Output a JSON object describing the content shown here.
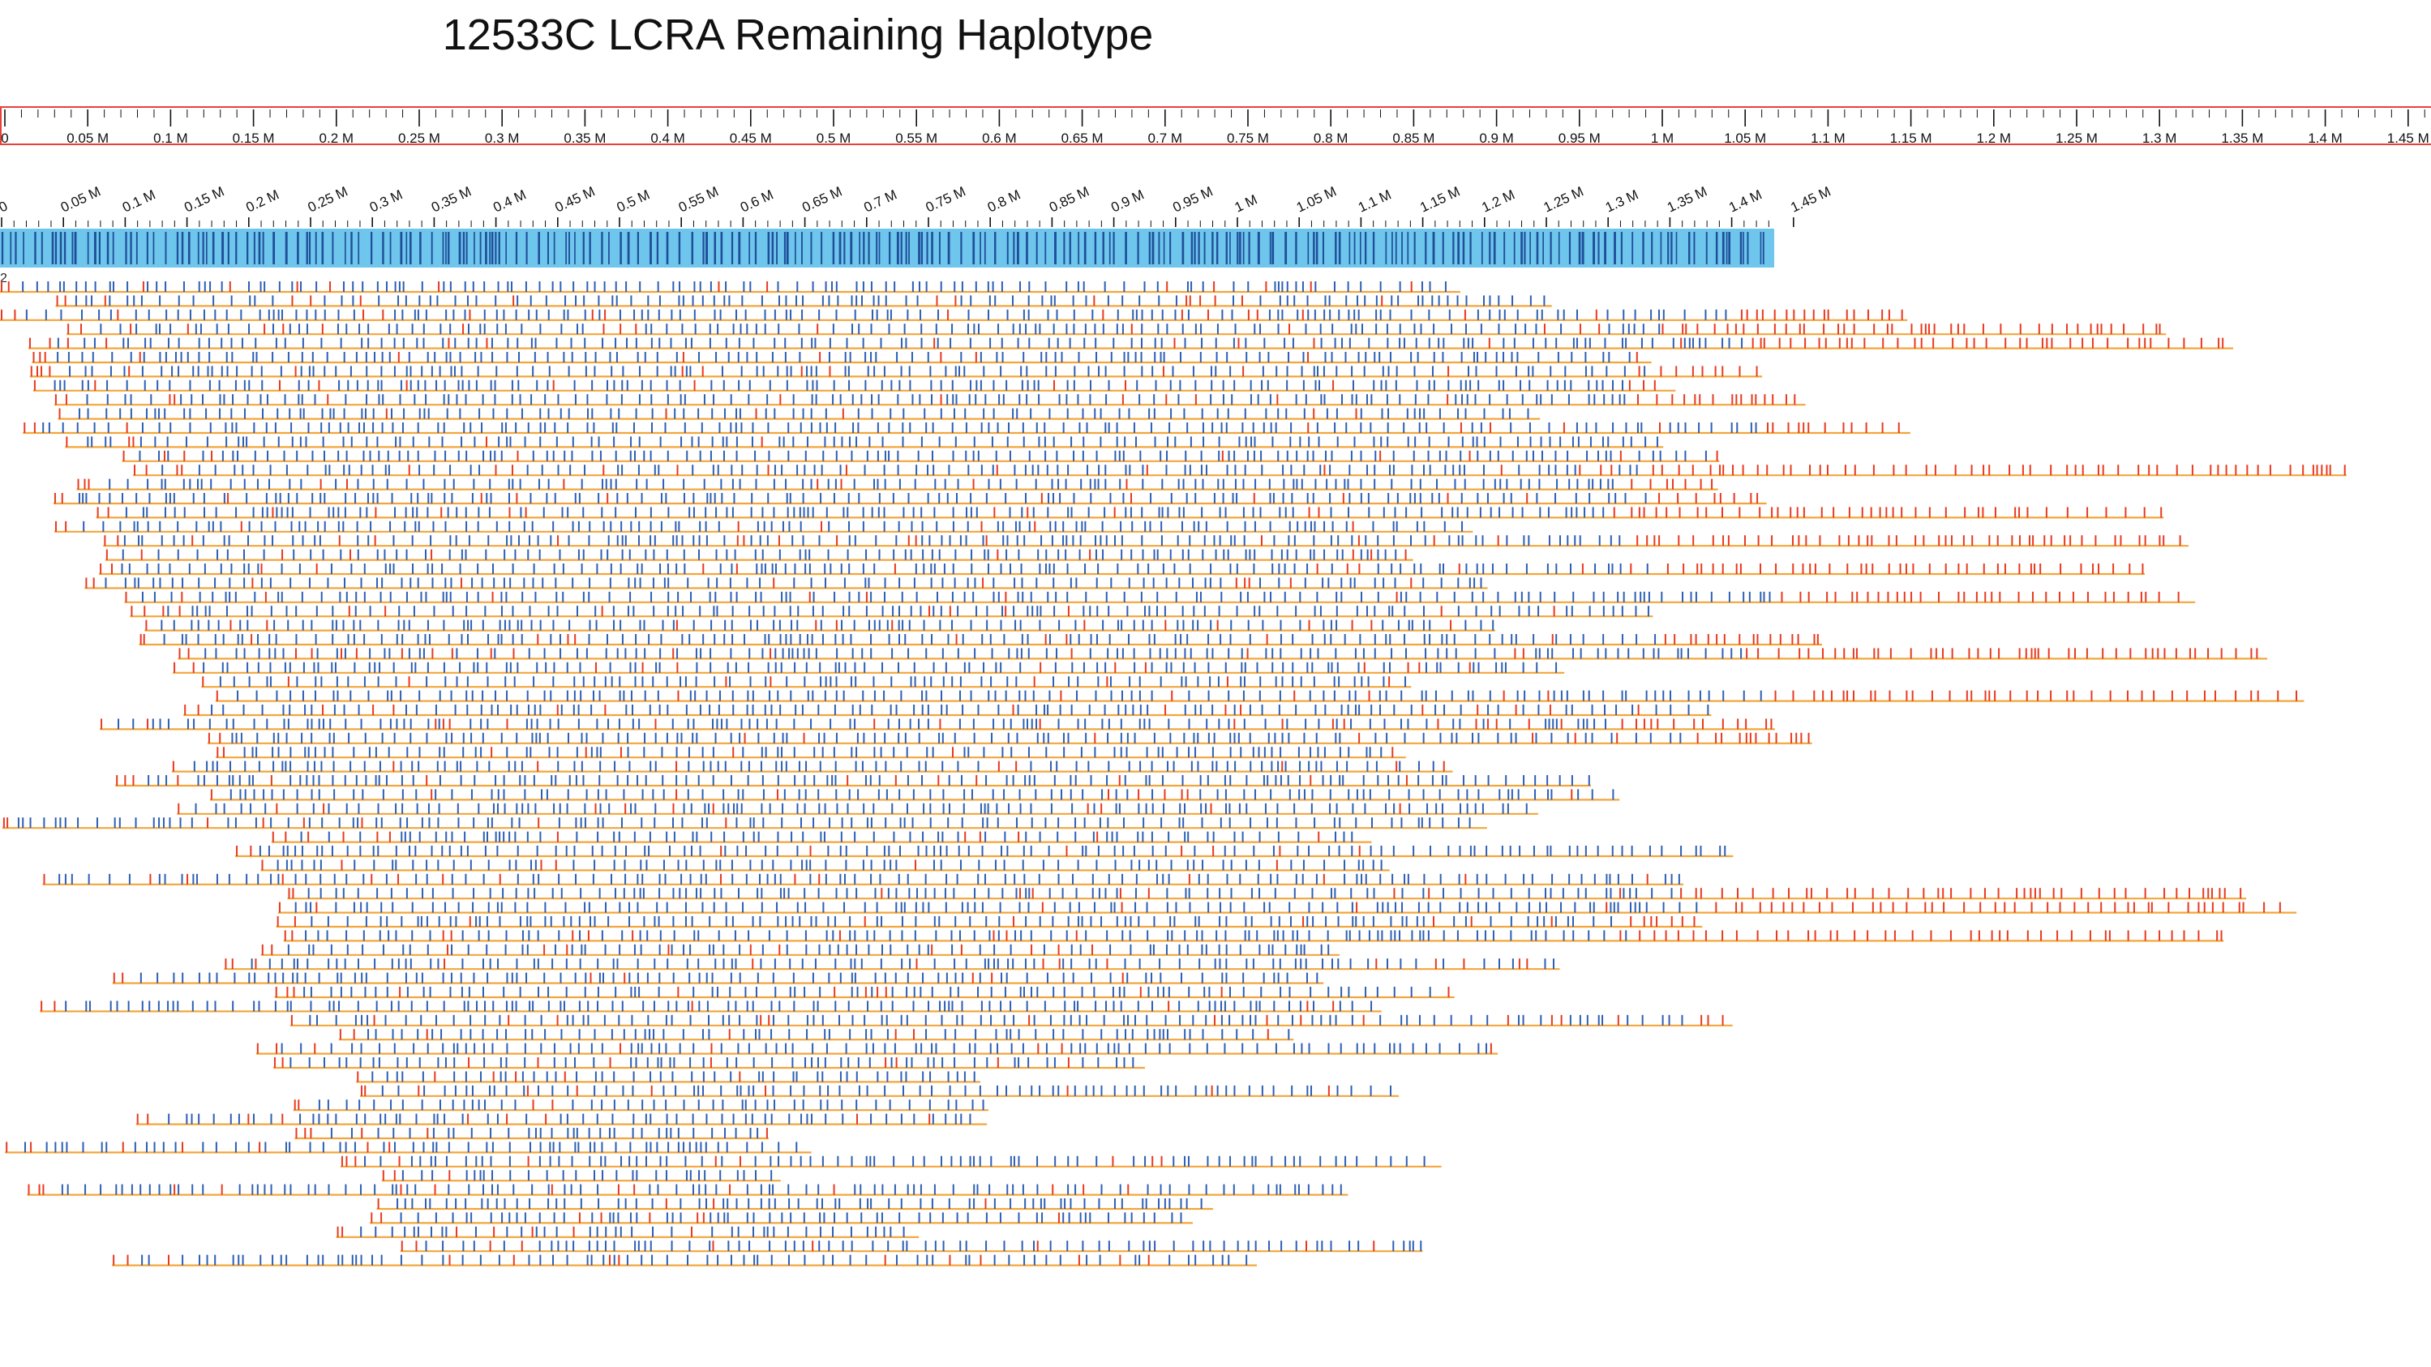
{
  "title": "12533C LCRA Remaining Haplotype",
  "reference_ruler": {
    "tick_labels": [
      "0",
      "0.05 M",
      "0.1 M",
      "0.15 M",
      "0.2 M",
      "0.25 M",
      "0.3 M",
      "0.35 M",
      "0.4 M",
      "0.45 M",
      "0.5 M",
      "0.55 M",
      "0.6 M",
      "0.65 M",
      "0.7 M",
      "0.75 M",
      "0.8 M",
      "0.85 M",
      "0.9 M",
      "0.95 M",
      "1 M",
      "1.05 M",
      "1.1 M",
      "1.15 M",
      "1.2 M",
      "1.25 M",
      "1.3 M",
      "1.35 M",
      "1.4 M",
      "1.45 M"
    ],
    "border_color": "#e8403a"
  },
  "contig_ruler": {
    "tick_labels": [
      "0",
      "0.05 M",
      "0.1 M",
      "0.15 M",
      "0.2 M",
      "0.25 M",
      "0.3 M",
      "0.35 M",
      "0.4 M",
      "0.45 M",
      "0.5 M",
      "0.55 M",
      "0.6 M",
      "0.65 M",
      "0.7 M",
      "0.75 M",
      "0.8 M",
      "0.85 M",
      "0.9 M",
      "0.95 M",
      "1 M",
      "1.05 M",
      "1.1 M",
      "1.15 M",
      "1.2 M",
      "1.25 M",
      "1.3 M",
      "1.35 M",
      "1.4 M",
      "1.45 M"
    ],
    "bar_color": "#6ec6ec",
    "label_mark_color": "#1f4f9a"
  },
  "contig_id": "2",
  "colors": {
    "molecule_line": "#f4a53a",
    "aligned_label": "#2d5fb4",
    "unaligned_label": "#e8391f"
  }
}
